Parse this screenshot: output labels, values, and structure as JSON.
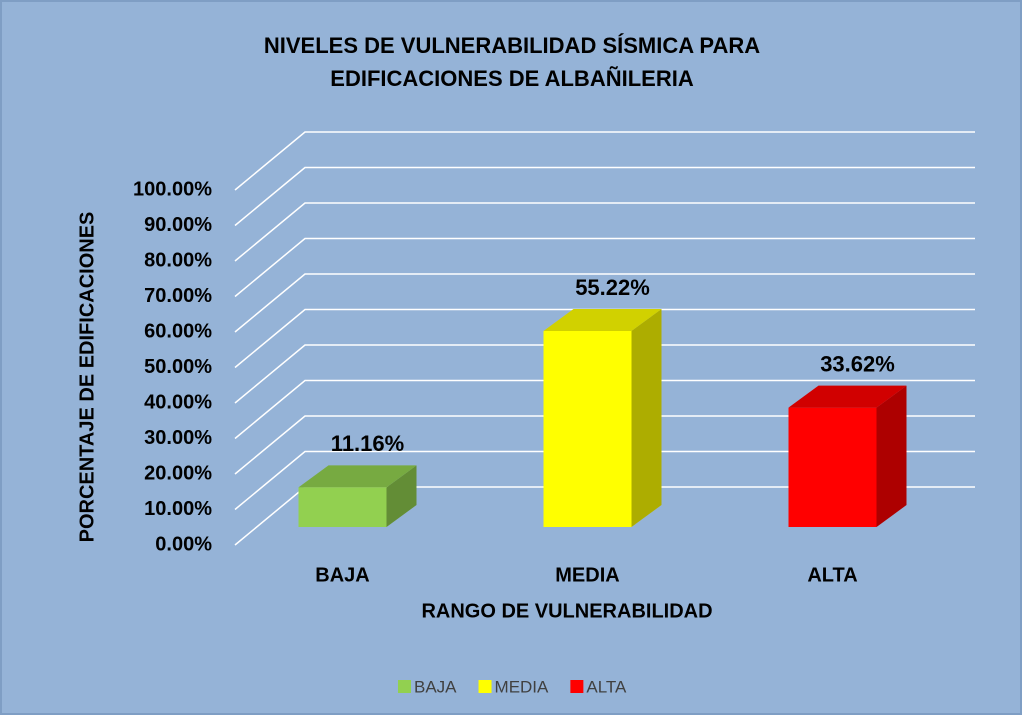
{
  "chart_data": {
    "type": "bar3d",
    "title": [
      "NIVELES DE VULNERABILIDAD SÍSMICA PARA",
      "EDIFICACIONES DE ALBAÑILERIA"
    ],
    "x_label": "RANGO DE VULNERABILIDAD",
    "y_label": "PORCENTAJE DE EDIFICACIONES",
    "categories": [
      "BAJA",
      "MEDIA",
      "ALTA"
    ],
    "values": [
      11.16,
      55.22,
      33.62
    ],
    "value_labels": [
      "11.16%",
      "55.22%",
      "33.62%"
    ],
    "colors": [
      "#92d050",
      "#ffff00",
      "#ff0000"
    ],
    "ylim": [
      0,
      100
    ],
    "yticks": [
      {
        "value": 0,
        "label": "0.00%"
      },
      {
        "value": 10,
        "label": "10.00%"
      },
      {
        "value": 20,
        "label": "20.00%"
      },
      {
        "value": 30,
        "label": "30.00%"
      },
      {
        "value": 40,
        "label": "40.00%"
      },
      {
        "value": 50,
        "label": "50.00%"
      },
      {
        "value": 60,
        "label": "60.00%"
      },
      {
        "value": 70,
        "label": "70.00%"
      },
      {
        "value": 80,
        "label": "80.00%"
      },
      {
        "value": 90,
        "label": "90.00%"
      },
      {
        "value": 100,
        "label": "100.00%"
      }
    ],
    "grid": true,
    "legend": "bottom"
  }
}
